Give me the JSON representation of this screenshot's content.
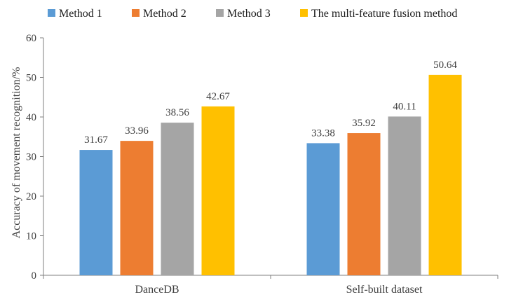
{
  "chart_data": {
    "type": "bar",
    "categories": [
      "DanceDB",
      "Self-built dataset"
    ],
    "series": [
      {
        "name": "Method 1",
        "values": [
          31.67,
          33.38
        ],
        "color": "#5b9bd5"
      },
      {
        "name": "Method 2",
        "values": [
          33.96,
          35.92
        ],
        "color": "#ed7d31"
      },
      {
        "name": "Method 3",
        "values": [
          38.56,
          40.11
        ],
        "color": "#a5a5a5"
      },
      {
        "name": "The multi-feature fusion method",
        "values": [
          42.67,
          50.64
        ],
        "color": "#ffc000"
      }
    ],
    "title": "",
    "xlabel": "",
    "ylabel": "Accuracy of movement recognition/%",
    "ylim": [
      0,
      60
    ],
    "yticks": [
      0,
      10,
      20,
      30,
      40,
      50,
      60
    ],
    "grid": false,
    "legend_position": "top"
  }
}
